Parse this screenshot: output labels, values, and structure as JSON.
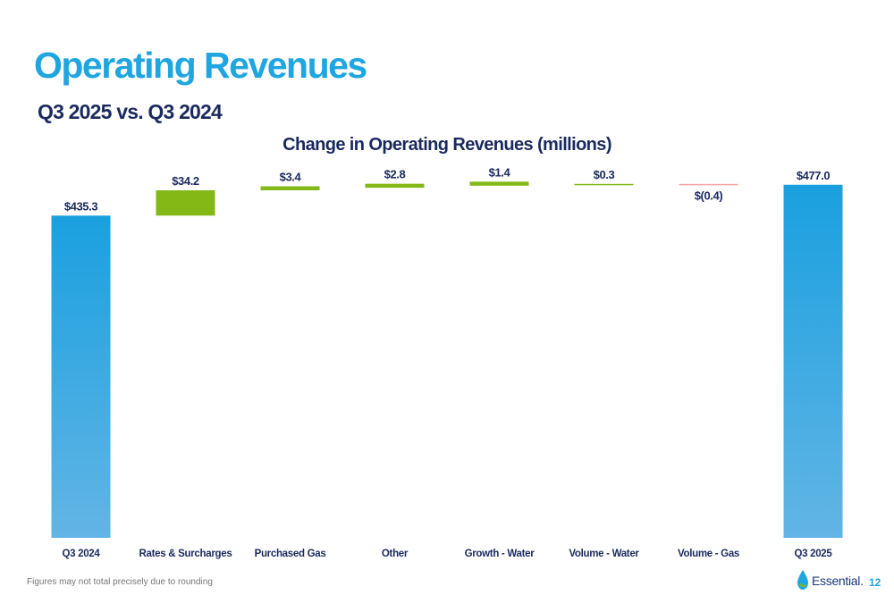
{
  "page": {
    "title": "Operating Revenues",
    "subtitle": "Q3 2025 vs. Q3 2024",
    "footnote": "Figures may not total precisely due to rounding",
    "page_number": "12",
    "logo_text": "Essential.",
    "logo_icon": "water-drop-icon"
  },
  "colors": {
    "title": "#1fa6e0",
    "dark_text": "#1b2a5e",
    "total_top": "#1aa0df",
    "total_bottom": "#62b5e5",
    "increase": "#84b817",
    "decrease": "#f4a6a6"
  },
  "chart_data": {
    "type": "bar",
    "subtype": "waterfall",
    "title": "Change in Operating Revenues (millions)",
    "xlabel": "",
    "ylabel": "",
    "grid": false,
    "legend": "none",
    "ylim": [
      0,
      490
    ],
    "categories": [
      "Q3 2024",
      "Rates & Surcharges",
      "Purchased Gas",
      "Other",
      "Growth - Water",
      "Volume - Water",
      "Volume - Gas",
      "Q3 2025"
    ],
    "values": [
      435.3,
      34.2,
      3.4,
      2.8,
      1.4,
      0.3,
      -0.4,
      477.0
    ],
    "kinds": [
      "total",
      "increase",
      "increase",
      "increase",
      "increase",
      "increase",
      "decrease",
      "total"
    ],
    "labels": [
      "$435.3",
      "$34.2",
      "$3.4",
      "$2.8",
      "$1.4",
      "$0.3",
      "$(0.4)",
      "$477.0"
    ]
  }
}
